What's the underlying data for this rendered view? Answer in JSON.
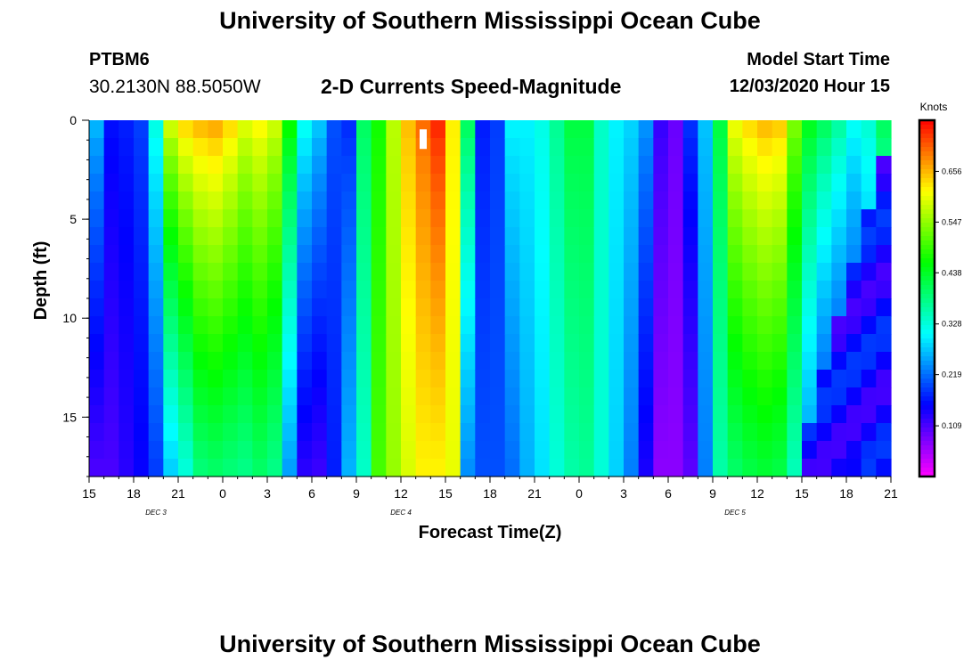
{
  "header": {
    "title": "University of Southern Mississippi Ocean Cube",
    "station": "PTBM6",
    "coordinates": "30.2130N 88.5050W",
    "subtitle": "2-D Currents Speed-Magnitude",
    "model_start_label": "Model Start Time",
    "model_start_value": "12/03/2020 Hour 15"
  },
  "footer": {
    "title": "University of Southern Mississippi Ocean Cube"
  },
  "chart_data": {
    "type": "heatmap",
    "title": "2-D Currents Speed-Magnitude",
    "xlabel": "Forecast Time(Z)",
    "ylabel": "Depth (ft)",
    "x_unit": "forecast hour from 12/03/2020 15Z",
    "x_range": [
      0,
      54
    ],
    "y_range": [
      0,
      18
    ],
    "y_inverted": true,
    "x_ticks": [
      {
        "x": 0,
        "label": "15"
      },
      {
        "x": 3,
        "label": "18"
      },
      {
        "x": 6,
        "label": "21"
      },
      {
        "x": 9,
        "label": "0"
      },
      {
        "x": 12,
        "label": "3"
      },
      {
        "x": 15,
        "label": "6"
      },
      {
        "x": 18,
        "label": "9"
      },
      {
        "x": 21,
        "label": "12"
      },
      {
        "x": 24,
        "label": "15"
      },
      {
        "x": 27,
        "label": "18"
      },
      {
        "x": 30,
        "label": "21"
      },
      {
        "x": 33,
        "label": "0"
      },
      {
        "x": 36,
        "label": "3"
      },
      {
        "x": 39,
        "label": "6"
      },
      {
        "x": 42,
        "label": "9"
      },
      {
        "x": 45,
        "label": "12"
      },
      {
        "x": 48,
        "label": "15"
      },
      {
        "x": 51,
        "label": "18"
      },
      {
        "x": 54,
        "label": "21"
      }
    ],
    "y_ticks": [
      {
        "y": 0,
        "label": "0"
      },
      {
        "y": 5,
        "label": "5"
      },
      {
        "y": 10,
        "label": "10"
      },
      {
        "y": 15,
        "label": "15"
      }
    ],
    "day_labels": [
      {
        "x": 4.5,
        "label": "DEC 3"
      },
      {
        "x": 21,
        "label": "DEC 4"
      },
      {
        "x": 43.5,
        "label": "DEC 5"
      }
    ],
    "colorbar": {
      "title": "Knots",
      "min": 0.0,
      "max": 0.766,
      "labels": [
        "0.109",
        "0.219",
        "0.328",
        "0.438",
        "0.547",
        "0.656"
      ]
    },
    "marker": {
      "x": 22.5,
      "y": 1.0,
      "note": "white bar"
    },
    "column_speeds_surface": [
      0.26,
      0.16,
      0.17,
      0.19,
      0.32,
      0.58,
      0.63,
      0.65,
      0.66,
      0.63,
      0.59,
      0.61,
      0.58,
      0.46,
      0.31,
      0.27,
      0.2,
      0.18,
      0.4,
      0.47,
      0.57,
      0.65,
      0.7,
      0.74,
      0.62,
      0.4,
      0.17,
      0.19,
      0.3,
      0.3,
      0.32,
      0.37,
      0.42,
      0.42,
      0.34,
      0.3,
      0.28,
      0.24,
      0.12,
      0.09,
      0.18,
      0.27,
      0.42,
      0.6,
      0.63,
      0.65,
      0.64,
      0.53,
      0.44,
      0.4,
      0.36,
      0.31,
      0.33,
      0.4
    ],
    "column_speeds_bottom": [
      0.11,
      0.11,
      0.13,
      0.15,
      0.19,
      0.28,
      0.33,
      0.39,
      0.4,
      0.39,
      0.38,
      0.4,
      0.38,
      0.25,
      0.13,
      0.12,
      0.17,
      0.26,
      0.34,
      0.5,
      0.55,
      0.59,
      0.62,
      0.62,
      0.6,
      0.24,
      0.2,
      0.2,
      0.22,
      0.26,
      0.29,
      0.33,
      0.36,
      0.37,
      0.33,
      0.28,
      0.23,
      0.14,
      0.07,
      0.07,
      0.1,
      0.23,
      0.36,
      0.4,
      0.42,
      0.43,
      0.42,
      0.35,
      0.24,
      0.17,
      0.15,
      0.15,
      0.2,
      0.25
    ]
  }
}
